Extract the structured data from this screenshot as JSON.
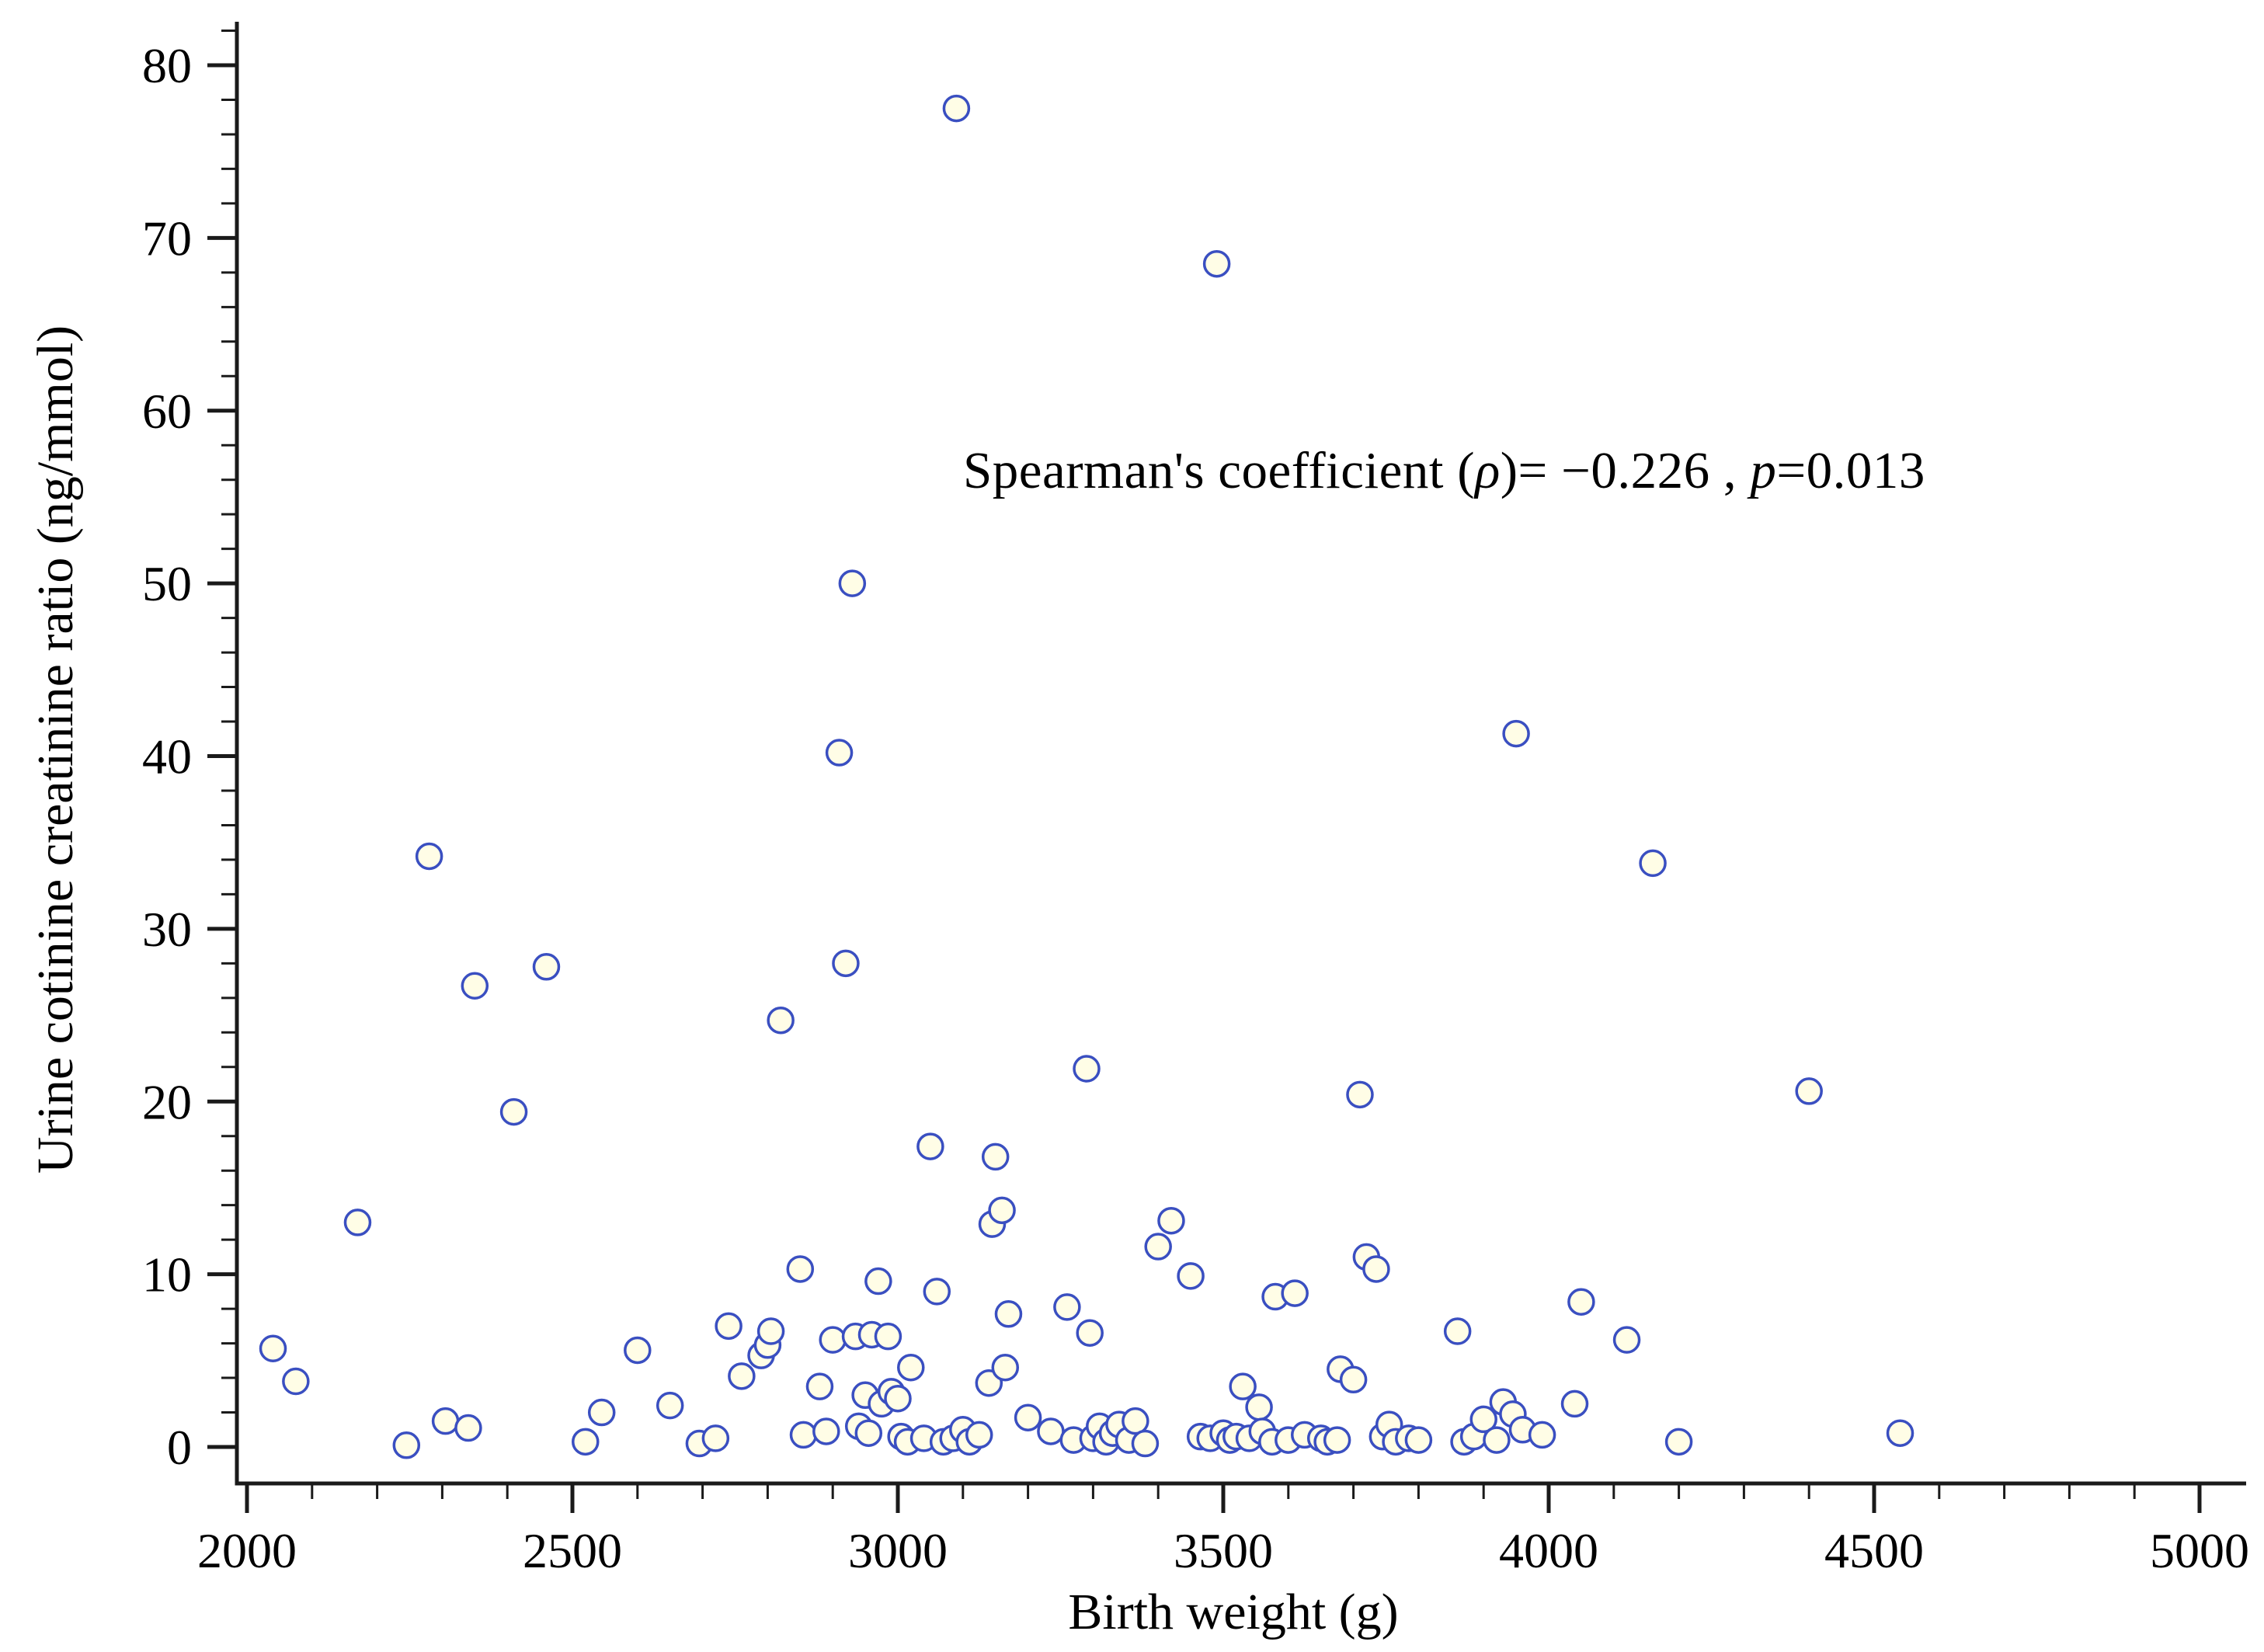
{
  "chart_data": {
    "type": "scatter",
    "title": "",
    "xlabel": "Birth weight (g)",
    "ylabel": "Urine cotinine creatinine ratio (ng/mmol)",
    "annotation": {
      "prefix": "Spearman's coefficient (",
      "rho": "ρ",
      "mid": ")= −0.226 , ",
      "p": "p",
      "suffix": "=0.013"
    },
    "xlim": [
      2000,
      5000
    ],
    "ylim": [
      0,
      80
    ],
    "x_ticks": [
      2000,
      2500,
      3000,
      3500,
      4000,
      4500,
      5000
    ],
    "y_ticks": [
      0,
      10,
      20,
      30,
      40,
      50,
      60,
      70,
      80
    ],
    "x_minor_step": 100,
    "y_minor_step": 2,
    "grid": false,
    "legend": "none",
    "axis_color": "#1a1a1a",
    "marker": {
      "fill": "#FFFDE6",
      "stroke": "#3A4FC1"
    },
    "points": [
      [
        2040,
        5.7
      ],
      [
        2075,
        3.8
      ],
      [
        2170,
        13.0
      ],
      [
        2245,
        0.1
      ],
      [
        2280,
        34.2
      ],
      [
        2305,
        1.5
      ],
      [
        2340,
        1.1
      ],
      [
        2350,
        26.7
      ],
      [
        2410,
        19.4
      ],
      [
        2460,
        27.8
      ],
      [
        2520,
        0.3
      ],
      [
        2545,
        2.0
      ],
      [
        2600,
        5.6
      ],
      [
        2650,
        2.4
      ],
      [
        2695,
        0.2
      ],
      [
        2720,
        0.5
      ],
      [
        2740,
        7.0
      ],
      [
        2760,
        4.1
      ],
      [
        2790,
        5.3
      ],
      [
        2800,
        5.9
      ],
      [
        2805,
        6.7
      ],
      [
        2820,
        24.7
      ],
      [
        2850,
        10.3
      ],
      [
        2855,
        0.7
      ],
      [
        2880,
        3.5
      ],
      [
        2890,
        0.9
      ],
      [
        2900,
        6.2
      ],
      [
        2910,
        40.2
      ],
      [
        2920,
        28.0
      ],
      [
        2930,
        50.0
      ],
      [
        2935,
        6.4
      ],
      [
        2940,
        1.2
      ],
      [
        2950,
        3.0
      ],
      [
        2955,
        0.8
      ],
      [
        2960,
        6.5
      ],
      [
        2970,
        9.6
      ],
      [
        2975,
        2.5
      ],
      [
        2985,
        6.4
      ],
      [
        2990,
        3.2
      ],
      [
        3000,
        2.8
      ],
      [
        3005,
        0.6
      ],
      [
        3015,
        0.3
      ],
      [
        3020,
        4.6
      ],
      [
        3040,
        0.5
      ],
      [
        3050,
        17.4
      ],
      [
        3060,
        9.0
      ],
      [
        3070,
        0.3
      ],
      [
        3085,
        0.5
      ],
      [
        3090,
        77.5
      ],
      [
        3100,
        1.0
      ],
      [
        3110,
        0.3
      ],
      [
        3125,
        0.7
      ],
      [
        3140,
        3.7
      ],
      [
        3145,
        12.9
      ],
      [
        3150,
        16.8
      ],
      [
        3160,
        13.7
      ],
      [
        3165,
        4.6
      ],
      [
        3170,
        7.7
      ],
      [
        3200,
        1.7
      ],
      [
        3235,
        0.9
      ],
      [
        3260,
        8.1
      ],
      [
        3270,
        0.4
      ],
      [
        3290,
        21.9
      ],
      [
        3295,
        6.6
      ],
      [
        3300,
        0.5
      ],
      [
        3310,
        1.2
      ],
      [
        3320,
        0.3
      ],
      [
        3330,
        0.8
      ],
      [
        3340,
        1.3
      ],
      [
        3355,
        0.4
      ],
      [
        3365,
        1.5
      ],
      [
        3380,
        0.2
      ],
      [
        3400,
        11.6
      ],
      [
        3420,
        13.1
      ],
      [
        3450,
        9.9
      ],
      [
        3465,
        0.6
      ],
      [
        3480,
        0.5
      ],
      [
        3490,
        68.5
      ],
      [
        3500,
        0.8
      ],
      [
        3510,
        0.4
      ],
      [
        3520,
        0.6
      ],
      [
        3530,
        3.5
      ],
      [
        3540,
        0.5
      ],
      [
        3555,
        2.3
      ],
      [
        3560,
        0.9
      ],
      [
        3575,
        0.3
      ],
      [
        3580,
        8.7
      ],
      [
        3600,
        0.4
      ],
      [
        3610,
        8.9
      ],
      [
        3625,
        0.7
      ],
      [
        3650,
        0.5
      ],
      [
        3660,
        0.3
      ],
      [
        3675,
        0.4
      ],
      [
        3680,
        4.5
      ],
      [
        3700,
        3.9
      ],
      [
        3710,
        20.4
      ],
      [
        3720,
        11.0
      ],
      [
        3735,
        10.3
      ],
      [
        3745,
        0.6
      ],
      [
        3755,
        1.3
      ],
      [
        3765,
        0.3
      ],
      [
        3785,
        0.5
      ],
      [
        3800,
        0.4
      ],
      [
        3860,
        6.7
      ],
      [
        3870,
        0.3
      ],
      [
        3885,
        0.6
      ],
      [
        3900,
        1.6
      ],
      [
        3920,
        0.4
      ],
      [
        3930,
        2.6
      ],
      [
        3945,
        1.9
      ],
      [
        3950,
        41.3
      ],
      [
        3960,
        1.0
      ],
      [
        3990,
        0.7
      ],
      [
        4040,
        2.5
      ],
      [
        4050,
        8.4
      ],
      [
        4120,
        6.2
      ],
      [
        4160,
        33.8
      ],
      [
        4200,
        0.3
      ],
      [
        4400,
        20.6
      ],
      [
        4540,
        0.8
      ]
    ]
  }
}
